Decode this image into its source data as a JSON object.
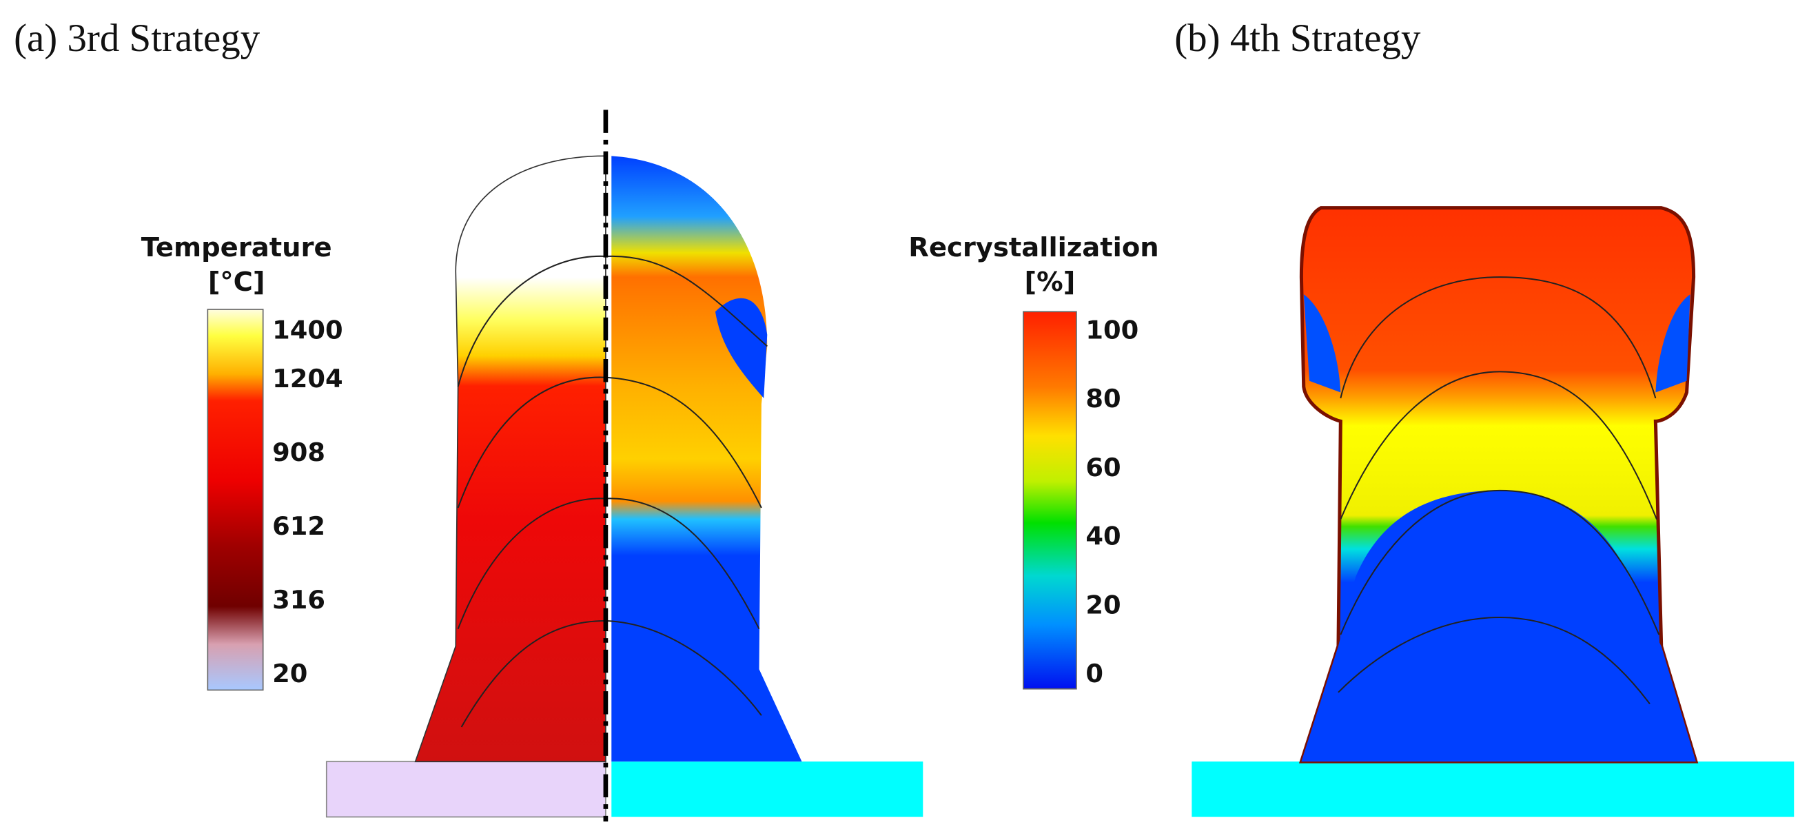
{
  "panels": [
    {
      "title": "(a) 3rd Strategy"
    },
    {
      "title": "(b) 4th Strategy"
    }
  ],
  "colorbars": [
    {
      "title": "Temperature",
      "unit": "[°C]",
      "ticks": [
        1400,
        1204,
        908,
        612,
        316,
        20
      ]
    },
    {
      "title": "Recrystallization",
      "unit": "[%]",
      "ticks": [
        100,
        80,
        60,
        40,
        20,
        0
      ]
    }
  ]
}
